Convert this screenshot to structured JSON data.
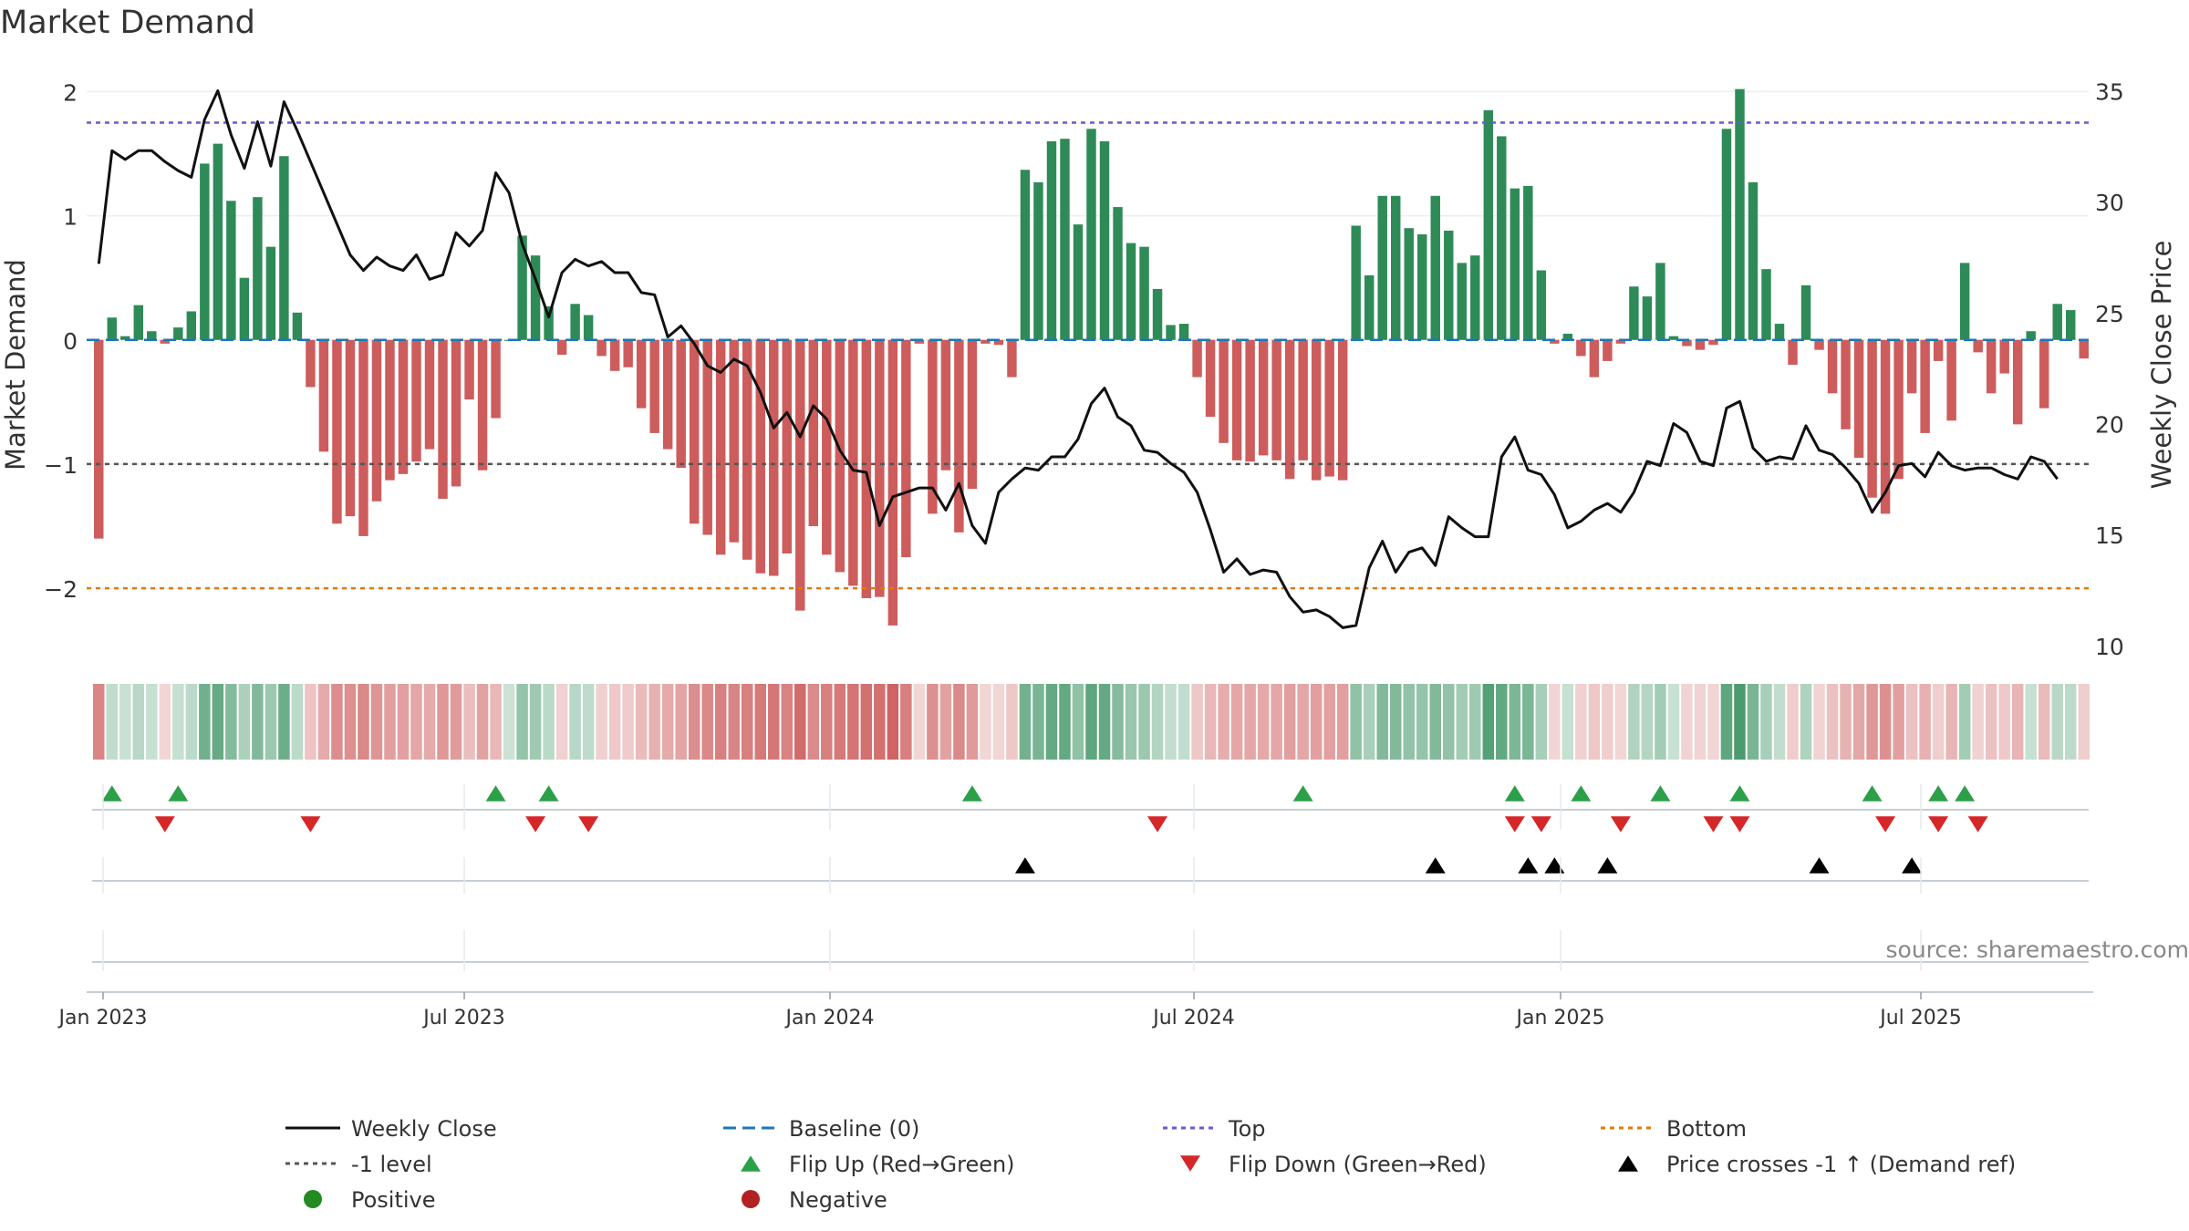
{
  "chart_data": {
    "type": "bar",
    "title": "Market Demand",
    "ylabel": "Market Demand",
    "y2label": "Weekly Close Price",
    "ylim": [
      -2.55,
      2.15
    ],
    "y2lim": [
      9.5,
      35.8
    ],
    "yticks": [
      2,
      1,
      0,
      -1,
      -2
    ],
    "y2ticks": [
      35,
      30,
      25,
      20,
      15,
      10
    ],
    "xticks": [
      "Jan 2023",
      "Jul 2023",
      "Jan 2024",
      "Jul 2024",
      "Jan 2025",
      "Jul 2025"
    ],
    "levels": {
      "top": 1.75,
      "minus_one": -1,
      "bottom": -2,
      "baseline": 0
    },
    "source": "source: sharemaestro.com",
    "demand": [
      -1.6,
      0.18,
      0.03,
      0.28,
      0.07,
      -0.03,
      0.1,
      0.23,
      1.42,
      1.58,
      1.12,
      0.5,
      1.15,
      0.75,
      1.48,
      0.22,
      -0.38,
      -0.9,
      -1.48,
      -1.42,
      -1.58,
      -1.3,
      -1.13,
      -1.08,
      -0.98,
      -0.88,
      -1.28,
      -1.18,
      -0.48,
      -1.05,
      -0.63,
      0,
      0.84,
      0.68,
      0.27,
      -0.12,
      0.29,
      0.2,
      -0.13,
      -0.25,
      -0.22,
      -0.55,
      -0.75,
      -0.88,
      -1.03,
      -1.48,
      -1.57,
      -1.73,
      -1.63,
      -1.77,
      -1.88,
      -1.9,
      -1.72,
      -2.18,
      -1.5,
      -1.73,
      -1.87,
      -1.98,
      -2.08,
      -2.07,
      -2.3,
      -1.75,
      -0.03,
      -1.4,
      -1.05,
      -1.55,
      -1.2,
      -0.03,
      -0.04,
      -0.3,
      1.37,
      1.27,
      1.6,
      1.62,
      0.93,
      1.7,
      1.6,
      1.07,
      0.78,
      0.75,
      0.41,
      0.12,
      0.13,
      -0.3,
      -0.62,
      -0.83,
      -0.97,
      -0.98,
      -0.93,
      -0.97,
      -1.12,
      -0.97,
      -1.13,
      -1.1,
      -1.13,
      0.92,
      0.52,
      1.16,
      1.16,
      0.9,
      0.85,
      1.16,
      0.88,
      0.62,
      0.68,
      1.85,
      1.64,
      1.22,
      1.24,
      0.56,
      -0.03,
      0.05,
      -0.13,
      -0.3,
      -0.17,
      -0.03,
      0.43,
      0.35,
      0.62,
      0.03,
      -0.05,
      -0.08,
      -0.04,
      1.7,
      2.02,
      1.27,
      0.57,
      0.13,
      -0.2,
      0.44,
      -0.08,
      -0.43,
      -0.72,
      -0.95,
      -1.27,
      -1.4,
      -1.12,
      -0.43,
      -0.75,
      -0.17,
      -0.65,
      0.62,
      -0.1,
      -0.43,
      -0.27,
      -0.68,
      0.07,
      -0.55,
      0.29,
      0.24,
      -0.15
    ],
    "close": [
      27.2,
      32.3,
      31.9,
      32.3,
      32.3,
      31.8,
      31.4,
      31.1,
      33.7,
      35.0,
      33.0,
      31.5,
      33.6,
      31.6,
      34.5,
      33.2,
      31.8,
      30.4,
      29.0,
      27.6,
      26.9,
      27.5,
      27.1,
      26.9,
      27.6,
      26.5,
      26.7,
      28.6,
      28.0,
      28.7,
      31.3,
      30.4,
      28.1,
      26.5,
      24.8,
      26.8,
      27.4,
      27.1,
      27.3,
      26.8,
      26.8,
      25.9,
      25.8,
      23.9,
      24.4,
      23.6,
      22.6,
      22.3,
      22.9,
      22.6,
      21.4,
      19.8,
      20.5,
      19.4,
      20.8,
      20.2,
      18.8,
      17.9,
      17.8,
      15.4,
      16.7,
      16.9,
      17.1,
      17.1,
      16.1,
      17.3,
      15.4,
      14.6,
      16.9,
      17.5,
      18.0,
      17.9,
      18.5,
      18.5,
      19.3,
      20.9,
      21.6,
      20.3,
      19.9,
      18.8,
      18.7,
      18.2,
      17.8,
      16.9,
      15.2,
      13.3,
      13.9,
      13.2,
      13.4,
      13.3,
      12.2,
      11.5,
      11.6,
      11.3,
      10.8,
      10.9,
      13.5,
      14.7,
      13.3,
      14.2,
      14.4,
      13.6,
      15.8,
      15.3,
      14.9,
      14.9,
      18.5,
      19.4,
      17.9,
      17.7,
      16.8,
      15.3,
      15.6,
      16.1,
      16.4,
      16.0,
      16.9,
      18.3,
      18.1,
      20.0,
      19.6,
      18.3,
      18.1,
      20.7,
      21.0,
      18.9,
      18.3,
      18.5,
      18.4,
      19.9,
      18.8,
      18.6,
      18.0,
      17.3,
      16.0,
      16.9,
      18.1,
      18.2,
      17.6,
      18.7,
      18.1,
      17.9,
      18.0,
      18.0,
      17.7,
      17.5,
      18.5,
      18.3,
      17.5
    ],
    "flip_up_idx": [
      1,
      6,
      30,
      34,
      66,
      91,
      107,
      112,
      118,
      124,
      134,
      139,
      141
    ],
    "flip_down_idx": [
      5,
      16,
      33,
      37,
      80,
      107,
      109,
      115,
      122,
      124,
      135,
      139,
      142
    ],
    "cross_idx": [
      70,
      101,
      108,
      110,
      114,
      130,
      137
    ],
    "legend": [
      {
        "label": "Weekly Close",
        "kind": "line-solid",
        "color": "#111111"
      },
      {
        "label": "Baseline (0)",
        "kind": "line-dash",
        "color": "#1f77b4"
      },
      {
        "label": "Top",
        "kind": "line-dot",
        "color": "#6a5acd"
      },
      {
        "label": "Bottom",
        "kind": "line-dot",
        "color": "#e07b00"
      },
      {
        "label": "-1 level",
        "kind": "line-dot",
        "color": "#555555"
      },
      {
        "label": "Flip Up (Red→Green)",
        "kind": "tri-up",
        "color": "#2ca048"
      },
      {
        "label": "Flip Down (Green→Red)",
        "kind": "tri-down",
        "color": "#d62728"
      },
      {
        "label": "Price crosses -1 ↑ (Demand ref)",
        "kind": "tri-up",
        "color": "#000000"
      },
      {
        "label": "Positive",
        "kind": "dot",
        "color": "#228b22"
      },
      {
        "label": "Negative",
        "kind": "dot",
        "color": "#b22222"
      }
    ],
    "colors": {
      "positive": "#2e8b57",
      "negative": "#cd5c5c",
      "line": "#111111"
    }
  }
}
